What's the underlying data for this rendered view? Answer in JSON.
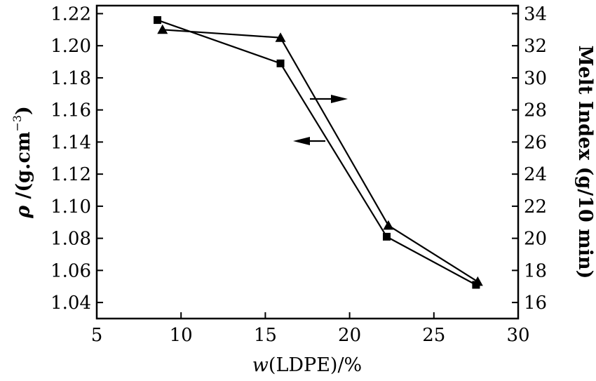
{
  "chart_data": {
    "type": "line",
    "x_axis": {
      "label_italic": "w",
      "label_rest": "(LDPE)/%",
      "range": [
        5,
        30
      ],
      "ticks": [
        5,
        10,
        15,
        20,
        25,
        30
      ]
    },
    "y_left": {
      "label_symbol": "ρ",
      "label_unit": " /(g.cm",
      "label_exp": "−3",
      "label_close": ")",
      "range": [
        1.03,
        1.225
      ],
      "ticks": [
        "1.04",
        "1.06",
        "1.08",
        "1.10",
        "1.12",
        "1.14",
        "1.16",
        "1.18",
        "1.20",
        "1.22"
      ]
    },
    "y_right": {
      "label": "Melt Index (g/10 min)",
      "range": [
        15.0,
        34.5
      ],
      "ticks": [
        "16",
        "18",
        "20",
        "22",
        "24",
        "26",
        "28",
        "30",
        "32",
        "34"
      ]
    },
    "series": [
      {
        "name": "density",
        "axis": "left",
        "marker": "square",
        "x": [
          8.6,
          15.9,
          22.2,
          27.5
        ],
        "y": [
          1.216,
          1.189,
          1.081,
          1.051
        ]
      },
      {
        "name": "melt index",
        "axis": "right",
        "marker": "triangle",
        "x": [
          8.9,
          15.9,
          22.3,
          27.6
        ],
        "y": [
          33.0,
          32.5,
          20.8,
          17.3
        ]
      }
    ],
    "annotations": [
      {
        "type": "arrow",
        "direction": "right",
        "points_to": "right axis"
      },
      {
        "type": "arrow",
        "direction": "left",
        "points_to": "left axis"
      }
    ]
  }
}
